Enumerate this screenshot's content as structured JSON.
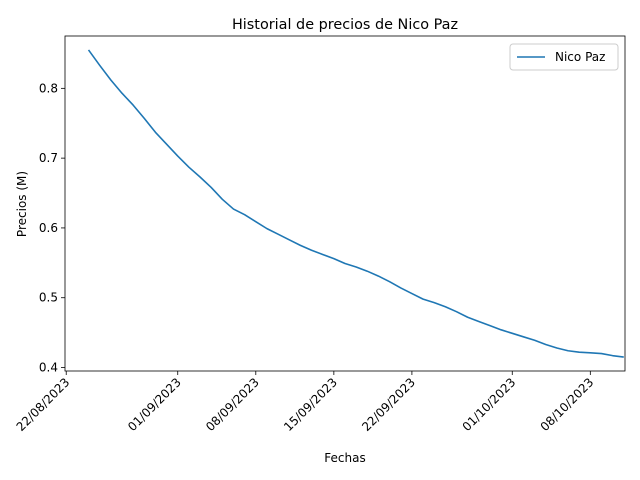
{
  "chart_data": {
    "type": "line",
    "title": "Historial de precios de Nico Paz",
    "xlabel": "Fechas",
    "ylabel": "Precios (M)",
    "x_ticks": [
      "22/08/2023",
      "01/09/2023",
      "08/09/2023",
      "15/09/2023",
      "22/09/2023",
      "01/10/2023",
      "08/10/2023"
    ],
    "x_tick_dates": [
      "2023-08-22",
      "2023-09-01",
      "2023-09-08",
      "2023-09-15",
      "2023-09-22",
      "2023-10-01",
      "2023-10-08"
    ],
    "xlim": [
      "2023-08-22",
      "2023-10-11"
    ],
    "y_ticks": [
      0.4,
      0.5,
      0.6,
      0.7,
      0.8
    ],
    "ylim": [
      0.395,
      0.875
    ],
    "grid": false,
    "legend_position": "top-right",
    "series": [
      {
        "name": "Nico Paz",
        "color": "#1f77b4",
        "x": [
          "2023-08-24",
          "2023-08-25",
          "2023-08-26",
          "2023-08-27",
          "2023-08-28",
          "2023-08-29",
          "2023-08-30",
          "2023-08-31",
          "2023-09-01",
          "2023-09-02",
          "2023-09-03",
          "2023-09-04",
          "2023-09-05",
          "2023-09-06",
          "2023-09-07",
          "2023-09-08",
          "2023-09-09",
          "2023-09-10",
          "2023-09-11",
          "2023-09-12",
          "2023-09-13",
          "2023-09-14",
          "2023-09-15",
          "2023-09-16",
          "2023-09-17",
          "2023-09-18",
          "2023-09-19",
          "2023-09-20",
          "2023-09-21",
          "2023-09-22",
          "2023-09-23",
          "2023-09-24",
          "2023-09-25",
          "2023-09-26",
          "2023-09-27",
          "2023-09-28",
          "2023-09-29",
          "2023-09-30",
          "2023-10-01",
          "2023-10-02",
          "2023-10-03",
          "2023-10-04",
          "2023-10-05",
          "2023-10-06",
          "2023-10-07",
          "2023-10-08",
          "2023-10-09",
          "2023-10-10",
          "2023-10-11"
        ],
        "values": [
          0.855,
          0.833,
          0.812,
          0.793,
          0.776,
          0.757,
          0.737,
          0.72,
          0.703,
          0.687,
          0.673,
          0.658,
          0.641,
          0.627,
          0.619,
          0.609,
          0.599,
          0.591,
          0.583,
          0.575,
          0.568,
          0.562,
          0.556,
          0.549,
          0.544,
          0.538,
          0.531,
          0.523,
          0.514,
          0.506,
          0.498,
          0.493,
          0.487,
          0.48,
          0.472,
          0.466,
          0.46,
          0.454,
          0.449,
          0.444,
          0.439,
          0.433,
          0.428,
          0.424,
          0.422,
          0.421,
          0.42,
          0.417,
          0.415
        ]
      }
    ]
  }
}
